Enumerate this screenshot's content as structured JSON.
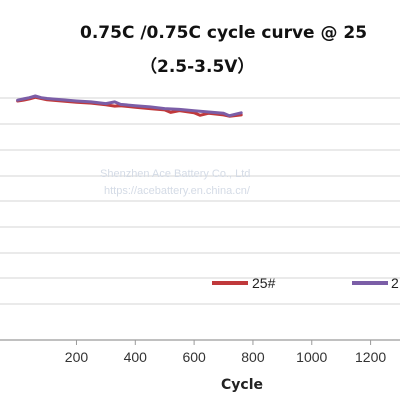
{
  "chart_data": {
    "type": "line",
    "title": "0.75C /0.75C cycle curve @ 25",
    "subtitle": "（2.5-3.5V）",
    "xlabel": "Cycle",
    "ylabel": "",
    "xlim": [
      -60,
      1300
    ],
    "ylim": [
      0,
      100
    ],
    "x_ticks": [
      "200",
      "400",
      "600",
      "800",
      "1000",
      "1200"
    ],
    "grid": "horizontal",
    "legend_placement": "right",
    "series": [
      {
        "name": "25#",
        "color": "#c0393b",
        "x": [
          0,
          20,
          40,
          60,
          80,
          100,
          150,
          200,
          250,
          300,
          330,
          350,
          400,
          450,
          500,
          520,
          550,
          600,
          620,
          650,
          700,
          720,
          760
        ],
        "y": [
          99.8,
          100.0,
          100.3,
          100.7,
          100.4,
          100.1,
          99.8,
          99.5,
          99.3,
          98.9,
          98.6,
          98.7,
          98.3,
          98.0,
          97.7,
          97.1,
          97.5,
          97.0,
          96.4,
          96.9,
          96.5,
          96.2,
          96.5
        ]
      },
      {
        "name": "2",
        "color": "#7b5ea7",
        "x": [
          0,
          20,
          40,
          60,
          80,
          100,
          150,
          200,
          250,
          300,
          330,
          350,
          400,
          450,
          500,
          550,
          600,
          650,
          700,
          720,
          760
        ],
        "y": [
          100.0,
          100.3,
          100.6,
          101.0,
          100.6,
          100.4,
          100.1,
          99.8,
          99.6,
          99.2,
          99.6,
          99.0,
          98.7,
          98.4,
          98.0,
          97.8,
          97.5,
          97.2,
          96.9,
          96.3,
          97.0
        ]
      }
    ]
  },
  "watermark": {
    "line1": "Shenzhen Ace Battery Co., Ltd",
    "line2": "https://acebattery.en.china.cn/"
  }
}
